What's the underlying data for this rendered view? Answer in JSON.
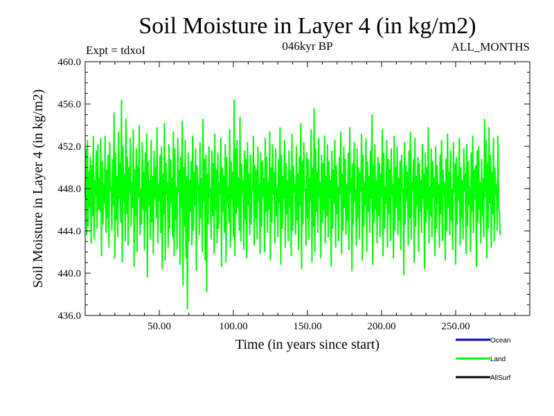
{
  "chart_data": {
    "type": "line",
    "title": "Soil Moisture in Layer 4 (in kg/m2)",
    "subtitle_left": "Expt = tdxoI",
    "subtitle_center": "046kyr BP",
    "subtitle_right": "ALL_MONTHS",
    "xlabel": "Time (in years since start)",
    "ylabel": "Soil Moisture in Layer 4 (in kg/m2)",
    "xlim": [
      0,
      300
    ],
    "ylim": [
      436,
      460
    ],
    "x_ticks": [
      50,
      100,
      150,
      200,
      250
    ],
    "x_tick_labels": [
      "50.00",
      "100.00",
      "150.00",
      "200.00",
      "250.00"
    ],
    "y_ticks": [
      436,
      440,
      444,
      448,
      452,
      456,
      460
    ],
    "y_tick_labels": [
      "436.0",
      "440.0",
      "444.0",
      "448.0",
      "452.0",
      "456.0",
      "460.0"
    ],
    "grid": false,
    "legend_position": "bottom-right",
    "series": [
      {
        "name": "Ocean",
        "color": "#0000cc",
        "values": []
      },
      {
        "name": "Land",
        "color": "#00ff00",
        "x_start": 0,
        "x_step": 0.5,
        "values": [
          447.2,
          451.8,
          443.6,
          452.6,
          444.4,
          449.6,
          446.2,
          451.0,
          442.8,
          450.2,
          445.4,
          453.0,
          443.2,
          448.8,
          447.4,
          451.6,
          444.2,
          452.2,
          446.0,
          449.0,
          445.8,
          452.8,
          441.6,
          450.6,
          444.6,
          448.4,
          446.6,
          453.0,
          443.8,
          449.8,
          445.2,
          451.2,
          442.4,
          452.4,
          447.8,
          448.2,
          444.0,
          450.8,
          446.4,
          455.2,
          441.4,
          451.4,
          445.0,
          449.2,
          443.4,
          453.4,
          447.0,
          450.4,
          444.8,
          456.4,
          441.0,
          452.0,
          446.8,
          449.4,
          443.0,
          454.6,
          445.6,
          451.0,
          442.6,
          450.0,
          447.6,
          452.8,
          444.4,
          448.6,
          446.2,
          453.6,
          440.6,
          449.8,
          445.4,
          451.8,
          442.0,
          450.2,
          447.2,
          454.0,
          443.6,
          448.0,
          444.6,
          452.4,
          446.0,
          449.6,
          442.2,
          451.4,
          445.8,
          453.2,
          439.6,
          450.6,
          446.4,
          448.8,
          443.2,
          452.6,
          444.8,
          449.2,
          441.8,
          451.6,
          447.0,
          450.0,
          445.2,
          453.8,
          442.8,
          448.4,
          446.8,
          451.2,
          443.8,
          452.0,
          440.4,
          449.4,
          445.6,
          454.2,
          441.2,
          450.4,
          447.4,
          448.6,
          442.4,
          452.2,
          444.2,
          450.8,
          446.6,
          449.0,
          443.4,
          453.4,
          441.6,
          451.8,
          445.0,
          448.2,
          442.2,
          452.8,
          447.6,
          449.8,
          440.8,
          451.0,
          446.2,
          454.4,
          438.8,
          450.0,
          444.4,
          452.6,
          441.4,
          449.2,
          436.6,
          451.4,
          443.0,
          448.8,
          445.8,
          450.6,
          442.6,
          453.0,
          444.0,
          449.6,
          446.4,
          451.8,
          440.2,
          450.2,
          447.8,
          448.4,
          443.6,
          452.4,
          445.2,
          449.0,
          442.0,
          454.6,
          446.8,
          450.8,
          441.2,
          451.2,
          438.2,
          449.4,
          444.6,
          452.0,
          447.2,
          448.0,
          443.2,
          451.6,
          445.4,
          450.4,
          441.8,
          453.2,
          446.0,
          449.8,
          442.8,
          451.4,
          444.2,
          448.6,
          447.4,
          452.8,
          440.6,
          450.0,
          445.8,
          449.2,
          443.8,
          452.2,
          441.0,
          451.0,
          446.6,
          448.2,
          444.8,
          453.6,
          442.4,
          450.6,
          447.0,
          449.6,
          443.4,
          456.4,
          441.6,
          451.8,
          445.6,
          452.6,
          446.2,
          449.0,
          444.0,
          454.8,
          443.0,
          450.4,
          447.6,
          448.8,
          442.2,
          451.6,
          445.0,
          450.8,
          441.4,
          452.4,
          446.4,
          449.4,
          443.6,
          451.2,
          444.6,
          448.0,
          447.8,
          453.0,
          442.6,
          450.2,
          445.2,
          449.8,
          443.2,
          452.0,
          446.8,
          448.4,
          441.8,
          451.4,
          444.4,
          450.6,
          447.2,
          449.0,
          442.0,
          452.8,
          445.8,
          451.0,
          443.8,
          448.6,
          446.0,
          453.4,
          441.2,
          450.0,
          444.8,
          452.2,
          447.4,
          449.6,
          442.8,
          451.8,
          445.4,
          448.2,
          443.4,
          450.8,
          446.6,
          453.8,
          440.8,
          451.2,
          444.2,
          449.2,
          447.0,
          452.6,
          442.4,
          450.4,
          445.6,
          448.8,
          443.0,
          451.6,
          446.2,
          449.8,
          441.6,
          453.2,
          444.0,
          450.2,
          447.6,
          448.4,
          443.6,
          452.0,
          445.0,
          449.4,
          442.2,
          451.0,
          446.4,
          454.2,
          440.4,
          450.6,
          444.6,
          452.4,
          447.8,
          448.0,
          442.6,
          451.4,
          445.2,
          450.8,
          443.2,
          449.0,
          446.8,
          453.6,
          441.0,
          450.0,
          444.4,
          455.6,
          442.0,
          451.8,
          445.8,
          449.6,
          443.8,
          452.8,
          447.2,
          448.6,
          441.4,
          451.2,
          444.8,
          450.4,
          446.0,
          453.0,
          442.8,
          449.2,
          445.4,
          452.2,
          443.4,
          450.6,
          447.0,
          448.8,
          440.6,
          451.6,
          444.2,
          449.8,
          446.6,
          452.6,
          442.4,
          450.2,
          445.6,
          448.2,
          443.0,
          451.0,
          447.4,
          453.4,
          441.8,
          449.4,
          444.0,
          452.0,
          446.2,
          450.8,
          443.6,
          448.4,
          445.0,
          451.4,
          442.2,
          453.8,
          447.6,
          449.0,
          440.2,
          450.4,
          444.6,
          452.4,
          446.8,
          448.0,
          442.6,
          451.8,
          445.2,
          450.0,
          443.2,
          449.6,
          447.8,
          453.2,
          441.2,
          451.2,
          444.4,
          448.6,
          446.4,
          452.8,
          442.0,
          450.6,
          445.8,
          449.2,
          443.8,
          451.6,
          447.0,
          455.0,
          440.8,
          450.2,
          444.8,
          452.2,
          446.0,
          448.8,
          442.8,
          451.0,
          445.4,
          450.4,
          443.4,
          449.4,
          447.2,
          453.6,
          441.6,
          451.4,
          444.2,
          448.2,
          446.6,
          452.6,
          442.4,
          450.8,
          445.6,
          449.8,
          443.0,
          451.8,
          447.4,
          448.4,
          441.4,
          453.0,
          444.0,
          450.0,
          446.2,
          452.0,
          443.6,
          449.0,
          445.0,
          450.6,
          442.2,
          451.2,
          447.6,
          448.0,
          439.8,
          452.4,
          444.6,
          450.2,
          446.8,
          449.6,
          442.6,
          451.6,
          445.2,
          453.4,
          443.2,
          448.6,
          447.8,
          450.8,
          441.0,
          452.8,
          444.4,
          449.2,
          446.4,
          451.0,
          442.0,
          450.4,
          445.8,
          448.8,
          443.8,
          452.2,
          447.0,
          449.4,
          440.4,
          451.4,
          444.8,
          450.0,
          446.0,
          453.8,
          442.8,
          448.2,
          445.4,
          451.8,
          443.4,
          450.6,
          447.2,
          449.0,
          441.6,
          452.0,
          444.2,
          450.2,
          446.6,
          448.4,
          442.4,
          451.2,
          445.6,
          452.6,
          443.0,
          449.8,
          447.4,
          448.6,
          441.2,
          450.8,
          444.0,
          453.2,
          446.2,
          449.6,
          443.6,
          451.6,
          445.0,
          448.0,
          442.2,
          452.4,
          447.6,
          450.4,
          440.8,
          451.0,
          444.6,
          449.2,
          446.8,
          452.8,
          442.6,
          450.0,
          445.2,
          448.8,
          443.2,
          451.8,
          447.8,
          449.4,
          441.8,
          452.2,
          444.4,
          450.6,
          446.4,
          448.2,
          442.0,
          451.4,
          445.8,
          453.0,
          443.8,
          449.8,
          447.0,
          450.2,
          440.6,
          451.6,
          444.8,
          452.0,
          446.0,
          448.6,
          442.8,
          450.8,
          445.4,
          449.0,
          443.4,
          454.6,
          447.2,
          452.6,
          441.4,
          450.4,
          444.2,
          453.8,
          446.6,
          451.2,
          442.4,
          449.6,
          445.6,
          452.8,
          443.0,
          450.0,
          447.4,
          448.4,
          444.0,
          453.0,
          446.2,
          445.8,
          443.6
        ]
      },
      {
        "name": "AllSurf",
        "color": "#000000",
        "values": []
      }
    ]
  }
}
